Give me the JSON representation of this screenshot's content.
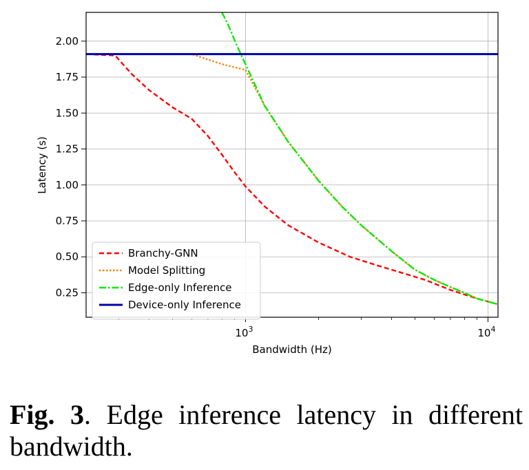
{
  "chart_data": {
    "type": "line",
    "xlabel": "Bandwidth (Hz)",
    "ylabel": "Latency (s)",
    "xscale": "log",
    "xlim": [
      220,
      11000
    ],
    "ylim": [
      0.08,
      2.2
    ],
    "x_ticks": [
      {
        "value": 1000,
        "base": "10",
        "exp": "3"
      },
      {
        "value": 10000,
        "base": "10",
        "exp": "4"
      }
    ],
    "y_ticks": [
      "0.25",
      "0.50",
      "0.75",
      "1.00",
      "1.25",
      "1.50",
      "1.75",
      "2.00"
    ],
    "grid": true,
    "legend_position": "lower-left",
    "series": [
      {
        "name": "Branchy-GNN",
        "color": "#ff0000",
        "style": "dashed",
        "points": [
          [
            220,
            1.91
          ],
          [
            290,
            1.9
          ],
          [
            340,
            1.77
          ],
          [
            400,
            1.66
          ],
          [
            500,
            1.54
          ],
          [
            600,
            1.46
          ],
          [
            700,
            1.34
          ],
          [
            800,
            1.21
          ],
          [
            900,
            1.09
          ],
          [
            1000,
            0.99
          ],
          [
            1200,
            0.85
          ],
          [
            1500,
            0.72
          ],
          [
            2000,
            0.6
          ],
          [
            2700,
            0.5
          ],
          [
            3500,
            0.44
          ],
          [
            4600,
            0.38
          ],
          [
            5500,
            0.34
          ],
          [
            7000,
            0.27
          ],
          [
            9000,
            0.21
          ],
          [
            11000,
            0.17
          ]
        ]
      },
      {
        "name": "Model Splitting",
        "color": "#ff7f0e",
        "style": "dotted",
        "points": [
          [
            220,
            1.91
          ],
          [
            600,
            1.91
          ],
          [
            650,
            1.89
          ],
          [
            800,
            1.84
          ],
          [
            1000,
            1.8
          ],
          [
            1200,
            1.55
          ],
          [
            1500,
            1.3
          ],
          [
            2000,
            1.03
          ],
          [
            2500,
            0.85
          ],
          [
            3000,
            0.72
          ],
          [
            4000,
            0.54
          ],
          [
            5000,
            0.41
          ],
          [
            6000,
            0.34
          ],
          [
            7000,
            0.29
          ],
          [
            8000,
            0.25
          ],
          [
            9000,
            0.21
          ],
          [
            11000,
            0.17
          ]
        ]
      },
      {
        "name": "Edge-only Inference",
        "color": "#00ee00",
        "style": "dashdot",
        "points": [
          [
            800,
            2.2
          ],
          [
            850,
            2.11
          ],
          [
            900,
            2.01
          ],
          [
            950,
            1.92
          ],
          [
            1000,
            1.84
          ],
          [
            1200,
            1.55
          ],
          [
            1500,
            1.3
          ],
          [
            2000,
            1.03
          ],
          [
            2500,
            0.85
          ],
          [
            3000,
            0.72
          ],
          [
            4000,
            0.54
          ],
          [
            5000,
            0.41
          ],
          [
            6000,
            0.34
          ],
          [
            7000,
            0.29
          ],
          [
            8000,
            0.25
          ],
          [
            9000,
            0.21
          ],
          [
            11000,
            0.17
          ]
        ]
      },
      {
        "name": "Device-only Inference",
        "color": "#0000aa",
        "style": "solid",
        "points": [
          [
            220,
            1.91
          ],
          [
            11000,
            1.91
          ]
        ]
      }
    ]
  },
  "caption": {
    "fig_label": "Fig. 3",
    "text": ". Edge inference latency in different bandwidth."
  }
}
